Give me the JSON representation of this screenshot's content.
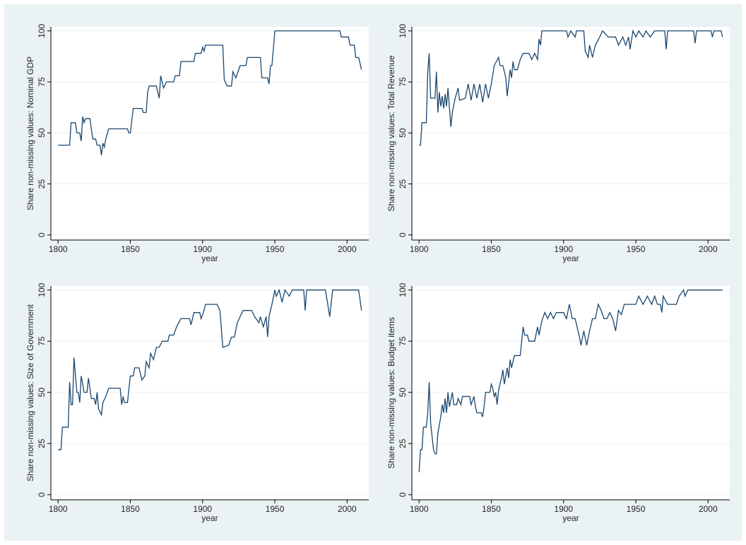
{
  "chart_data": [
    {
      "type": "line",
      "ylabel": "Share non-missing values: Nominal GDP",
      "xlabel": "year",
      "color": "#1a476f",
      "grid": true,
      "xlim": [
        1795,
        2015
      ],
      "ylim": [
        -2.5,
        102
      ],
      "xticks": [
        1800,
        1850,
        1900,
        1950,
        2000
      ],
      "yticks": [
        0,
        25,
        50,
        75,
        100
      ],
      "x": [
        1800,
        1808,
        1809,
        1812,
        1813,
        1815,
        1816,
        1817,
        1818,
        1819,
        1822,
        1823,
        1824,
        1826,
        1827,
        1829,
        1830,
        1831,
        1832,
        1833,
        1835,
        1848,
        1849,
        1850,
        1852,
        1858,
        1859,
        1861,
        1862,
        1863,
        1868,
        1869,
        1870,
        1871,
        1872,
        1873,
        1875,
        1880,
        1881,
        1884,
        1885,
        1894,
        1895,
        1899,
        1900,
        1901,
        1902,
        1914,
        1915,
        1917,
        1920,
        1921,
        1923,
        1926,
        1930,
        1931,
        1940,
        1941,
        1945,
        1946,
        1947,
        1948,
        1950,
        1995,
        1996,
        2001,
        2002,
        2005,
        2006,
        2008,
        2010
      ],
      "values": [
        44,
        44,
        55,
        55,
        50,
        50,
        46,
        58,
        55,
        57,
        57,
        52,
        47,
        47,
        44,
        44,
        39,
        45,
        43,
        47,
        52,
        52,
        50,
        50,
        62,
        62,
        60,
        60,
        70,
        73,
        73,
        70,
        67,
        78,
        75,
        72,
        75,
        75,
        78,
        78,
        85,
        85,
        89,
        89,
        92,
        90,
        93,
        93,
        76,
        73,
        73,
        80,
        77,
        83,
        83,
        87,
        87,
        77,
        77,
        74,
        83,
        83,
        100,
        100,
        97,
        97,
        93,
        93,
        87,
        87,
        81
      ]
    },
    {
      "type": "line",
      "ylabel": "Share non-missing values: Total Revenue",
      "xlabel": "year",
      "color": "#1a476f",
      "grid": true,
      "xlim": [
        1795,
        2015
      ],
      "ylim": [
        -2.5,
        102
      ],
      "xticks": [
        1800,
        1850,
        1900,
        1950,
        2000
      ],
      "yticks": [
        0,
        25,
        50,
        75,
        100
      ],
      "x": [
        1800,
        1801,
        1802,
        1805,
        1806,
        1807,
        1808,
        1811,
        1812,
        1813,
        1814,
        1815,
        1816,
        1817,
        1818,
        1819,
        1820,
        1822,
        1823,
        1825,
        1827,
        1828,
        1832,
        1834,
        1836,
        1838,
        1840,
        1842,
        1844,
        1846,
        1848,
        1850,
        1852,
        1855,
        1856,
        1858,
        1860,
        1861,
        1863,
        1864,
        1865,
        1866,
        1868,
        1870,
        1872,
        1876,
        1878,
        1880,
        1882,
        1883,
        1884,
        1885,
        1902,
        1903,
        1905,
        1908,
        1909,
        1914,
        1915,
        1917,
        1918,
        1920,
        1922,
        1925,
        1927,
        1931,
        1936,
        1938,
        1941,
        1943,
        1945,
        1946,
        1948,
        1950,
        1952,
        1955,
        1957,
        1960,
        1963,
        1970,
        1971,
        1972,
        1990,
        1991,
        1992,
        2002,
        2003,
        2004,
        2009,
        2010
      ],
      "values": [
        44,
        44,
        55,
        55,
        80,
        89,
        67,
        67,
        80,
        60,
        70,
        63,
        68,
        62,
        69,
        63,
        72,
        53,
        60,
        67,
        72,
        66,
        67,
        74,
        66,
        74,
        67,
        74,
        65,
        74,
        67,
        74,
        83,
        87,
        83,
        83,
        77,
        68,
        81,
        77,
        85,
        81,
        81,
        86,
        89,
        89,
        86,
        89,
        86,
        96,
        93,
        100,
        100,
        97,
        100,
        97,
        100,
        100,
        90,
        87,
        93,
        87,
        93,
        97,
        100,
        97,
        97,
        93,
        97,
        93,
        97,
        91,
        100,
        97,
        100,
        97,
        100,
        97,
        100,
        100,
        91,
        100,
        100,
        94,
        100,
        100,
        97,
        100,
        100,
        97
      ]
    },
    {
      "type": "line",
      "ylabel": "Share non-missing values: Size of Government",
      "xlabel": "year",
      "color": "#1a476f",
      "grid": true,
      "xlim": [
        1795,
        2015
      ],
      "ylim": [
        -2.5,
        102
      ],
      "xticks": [
        1800,
        1850,
        1900,
        1950,
        2000
      ],
      "yticks": [
        0,
        25,
        50,
        75,
        100
      ],
      "x": [
        1800,
        1802,
        1803,
        1807,
        1808,
        1809,
        1810,
        1811,
        1813,
        1814,
        1815,
        1816,
        1818,
        1820,
        1821,
        1823,
        1825,
        1826,
        1827,
        1828,
        1830,
        1831,
        1833,
        1835,
        1843,
        1844,
        1845,
        1846,
        1848,
        1850,
        1852,
        1853,
        1856,
        1858,
        1860,
        1861,
        1863,
        1864,
        1866,
        1868,
        1870,
        1872,
        1876,
        1877,
        1880,
        1882,
        1885,
        1891,
        1892,
        1894,
        1898,
        1899,
        1901,
        1902,
        1910,
        1912,
        1914,
        1918,
        1920,
        1922,
        1924,
        1926,
        1928,
        1934,
        1936,
        1939,
        1940,
        1942,
        1944,
        1945,
        1946,
        1948,
        1950,
        1951,
        1953,
        1955,
        1957,
        1960,
        1962,
        1970,
        1971,
        1972,
        1985,
        1988,
        1990,
        2008,
        2010
      ],
      "values": [
        22,
        22,
        33,
        33,
        55,
        44,
        44,
        67,
        50,
        50,
        45,
        58,
        50,
        50,
        57,
        47,
        47,
        44,
        50,
        42,
        39,
        45,
        48,
        52,
        52,
        44,
        48,
        45,
        45,
        58,
        58,
        62,
        62,
        56,
        58,
        65,
        62,
        69,
        66,
        72,
        72,
        75,
        75,
        78,
        78,
        82,
        86,
        86,
        83,
        89,
        89,
        86,
        90,
        93,
        93,
        90,
        72,
        73,
        77,
        77,
        84,
        87,
        90,
        90,
        87,
        84,
        87,
        82,
        87,
        77,
        87,
        93,
        100,
        97,
        100,
        94,
        100,
        97,
        100,
        100,
        90,
        100,
        100,
        87,
        100,
        100,
        90
      ]
    },
    {
      "type": "line",
      "ylabel": "Share non-missing values: Budget items",
      "xlabel": "year",
      "color": "#1a476f",
      "grid": true,
      "xlim": [
        1795,
        2015
      ],
      "ylim": [
        -2.5,
        102
      ],
      "xticks": [
        1800,
        1850,
        1900,
        1950,
        2000
      ],
      "yticks": [
        0,
        25,
        50,
        75,
        100
      ],
      "x": [
        1800,
        1801,
        1802,
        1803,
        1805,
        1806,
        1807,
        1808,
        1810,
        1811,
        1812,
        1813,
        1815,
        1816,
        1817,
        1818,
        1819,
        1820,
        1821,
        1823,
        1824,
        1826,
        1827,
        1829,
        1830,
        1833,
        1835,
        1836,
        1838,
        1839,
        1840,
        1843,
        1844,
        1845,
        1846,
        1849,
        1850,
        1851,
        1852,
        1853,
        1854,
        1855,
        1857,
        1858,
        1859,
        1861,
        1862,
        1863,
        1864,
        1866,
        1870,
        1872,
        1873,
        1875,
        1876,
        1880,
        1882,
        1883,
        1885,
        1887,
        1889,
        1891,
        1893,
        1895,
        1900,
        1902,
        1904,
        1906,
        1908,
        1910,
        1911,
        1912,
        1914,
        1916,
        1918,
        1920,
        1922,
        1924,
        1926,
        1928,
        1930,
        1932,
        1934,
        1936,
        1938,
        1940,
        1942,
        1945,
        1950,
        1952,
        1955,
        1958,
        1961,
        1963,
        1965,
        1967,
        1968,
        1969,
        1972,
        1978,
        1980,
        1983,
        1984,
        1986,
        2010
      ],
      "values": [
        11,
        22,
        22,
        33,
        33,
        40,
        55,
        35,
        22,
        20,
        20,
        30,
        38,
        44,
        40,
        47,
        40,
        50,
        43,
        50,
        44,
        44,
        47,
        44,
        48,
        48,
        48,
        44,
        48,
        43,
        40,
        40,
        38,
        43,
        50,
        50,
        54,
        52,
        48,
        50,
        44,
        51,
        57,
        61,
        54,
        62,
        57,
        66,
        62,
        68,
        68,
        82,
        78,
        78,
        75,
        75,
        82,
        78,
        85,
        89,
        86,
        89,
        86,
        89,
        89,
        86,
        93,
        86,
        86,
        80,
        77,
        73,
        80,
        73,
        80,
        86,
        86,
        93,
        90,
        86,
        86,
        89,
        86,
        80,
        90,
        88,
        93,
        93,
        93,
        97,
        93,
        97,
        93,
        97,
        93,
        93,
        89,
        97,
        93,
        93,
        97,
        100,
        97,
        100,
        100
      ]
    }
  ]
}
